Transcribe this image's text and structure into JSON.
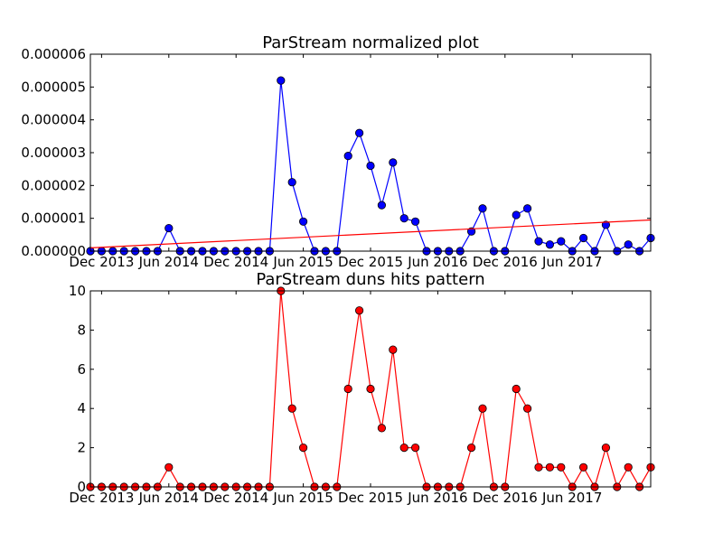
{
  "chart_data": [
    {
      "type": "line",
      "title": "ParStream normalized plot",
      "xlabel": "",
      "ylabel": "",
      "ylim": [
        0,
        6e-06
      ],
      "yticks": [
        "0.000000",
        "0.000001",
        "0.000002",
        "0.000003",
        "0.000004",
        "0.000005",
        "0.000006"
      ],
      "xticks": [
        "Dec 2013",
        "Jun 2014",
        "Dec 2014",
        "Jun 2015",
        "Dec 2015",
        "Jun 2016",
        "Dec 2016",
        "Jun 2017"
      ],
      "grid": false,
      "series": [
        {
          "color": "#0000ff",
          "marker": "circle",
          "values": [
            0,
            0,
            0,
            0,
            0,
            0,
            0,
            7e-07,
            0,
            0,
            0,
            0,
            0,
            0,
            0,
            0,
            0,
            5.2e-06,
            2.1e-06,
            9e-07,
            0,
            0,
            0,
            2.9e-06,
            3.6e-06,
            2.6e-06,
            1.4e-06,
            2.7e-06,
            1e-06,
            9e-07,
            0,
            0,
            0,
            0,
            6e-07,
            1.3e-06,
            0,
            0,
            1.1e-06,
            1.3e-06,
            3e-07,
            2e-07,
            3e-07,
            0,
            4e-07,
            0,
            8e-07,
            0,
            2e-07,
            0,
            4e-07
          ]
        },
        {
          "color": "#ff0000",
          "marker": "none",
          "trend": true,
          "values": [
            1e-07,
            9.5e-07
          ]
        }
      ]
    },
    {
      "type": "line",
      "title": "ParStream duns hits pattern",
      "xlabel": "",
      "ylabel": "",
      "ylim": [
        0,
        10
      ],
      "yticks": [
        "0",
        "2",
        "4",
        "6",
        "8",
        "10"
      ],
      "xticks": [
        "Dec 2013",
        "Jun 2014",
        "Dec 2014",
        "Jun 2015",
        "Dec 2015",
        "Jun 2016",
        "Dec 2016",
        "Jun 2017"
      ],
      "grid": false,
      "series": [
        {
          "color": "#ff0000",
          "marker": "circle",
          "values": [
            0,
            0,
            0,
            0,
            0,
            0,
            0,
            1,
            0,
            0,
            0,
            0,
            0,
            0,
            0,
            0,
            0,
            10,
            4,
            2,
            0,
            0,
            0,
            5,
            9,
            5,
            3,
            7,
            2,
            2,
            0,
            0,
            0,
            0,
            2,
            4,
            0,
            0,
            5,
            4,
            1,
            1,
            1,
            0,
            1,
            0,
            2,
            0,
            1,
            0,
            1
          ]
        }
      ]
    }
  ]
}
